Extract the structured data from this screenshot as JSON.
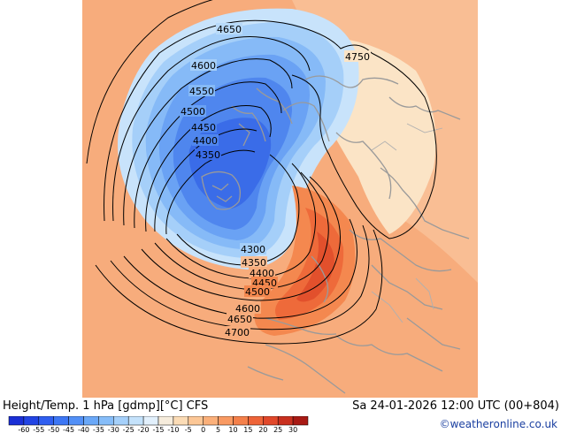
{
  "header": {
    "title": "Height/Temp. 1 hPa [gdmp][°C] CFS",
    "valid_time": "Sa 24-01-2026 12:00 UTC (00+804)"
  },
  "footer": {
    "credit": "©weatheronline.co.uk"
  },
  "colorbar": {
    "labels": [
      "-60",
      "-55",
      "-50",
      "-45",
      "-40",
      "-35",
      "-30",
      "-25",
      "-20",
      "-15",
      "-10",
      "-5",
      "0",
      "5",
      "10",
      "15",
      "20",
      "25",
      "30"
    ],
    "colors": [
      "#1a2fd6",
      "#2244e4",
      "#2f5ef0",
      "#3d77f5",
      "#5290f7",
      "#6aa8f8",
      "#86bdf9",
      "#a5d0fa",
      "#c4e2fb",
      "#e2f0fc",
      "#f6ecdc",
      "#fbdcb6",
      "#fcc796",
      "#fbb07a",
      "#f99a62",
      "#f4804a",
      "#ee6438",
      "#e1482a",
      "#c9301f",
      "#a81a14"
    ]
  },
  "contours": {
    "labels": [
      "4650",
      "4600",
      "4550",
      "4500",
      "4450",
      "4400",
      "4350",
      "4300",
      "4350",
      "4400",
      "4450",
      "4500",
      "4600",
      "4650",
      "4700",
      "4750"
    ]
  },
  "colors": {
    "warm_background": "#f5a070",
    "cold_core": "#2f5ef0",
    "contour_line": "#000000",
    "coastline": "#a0a0a0"
  }
}
